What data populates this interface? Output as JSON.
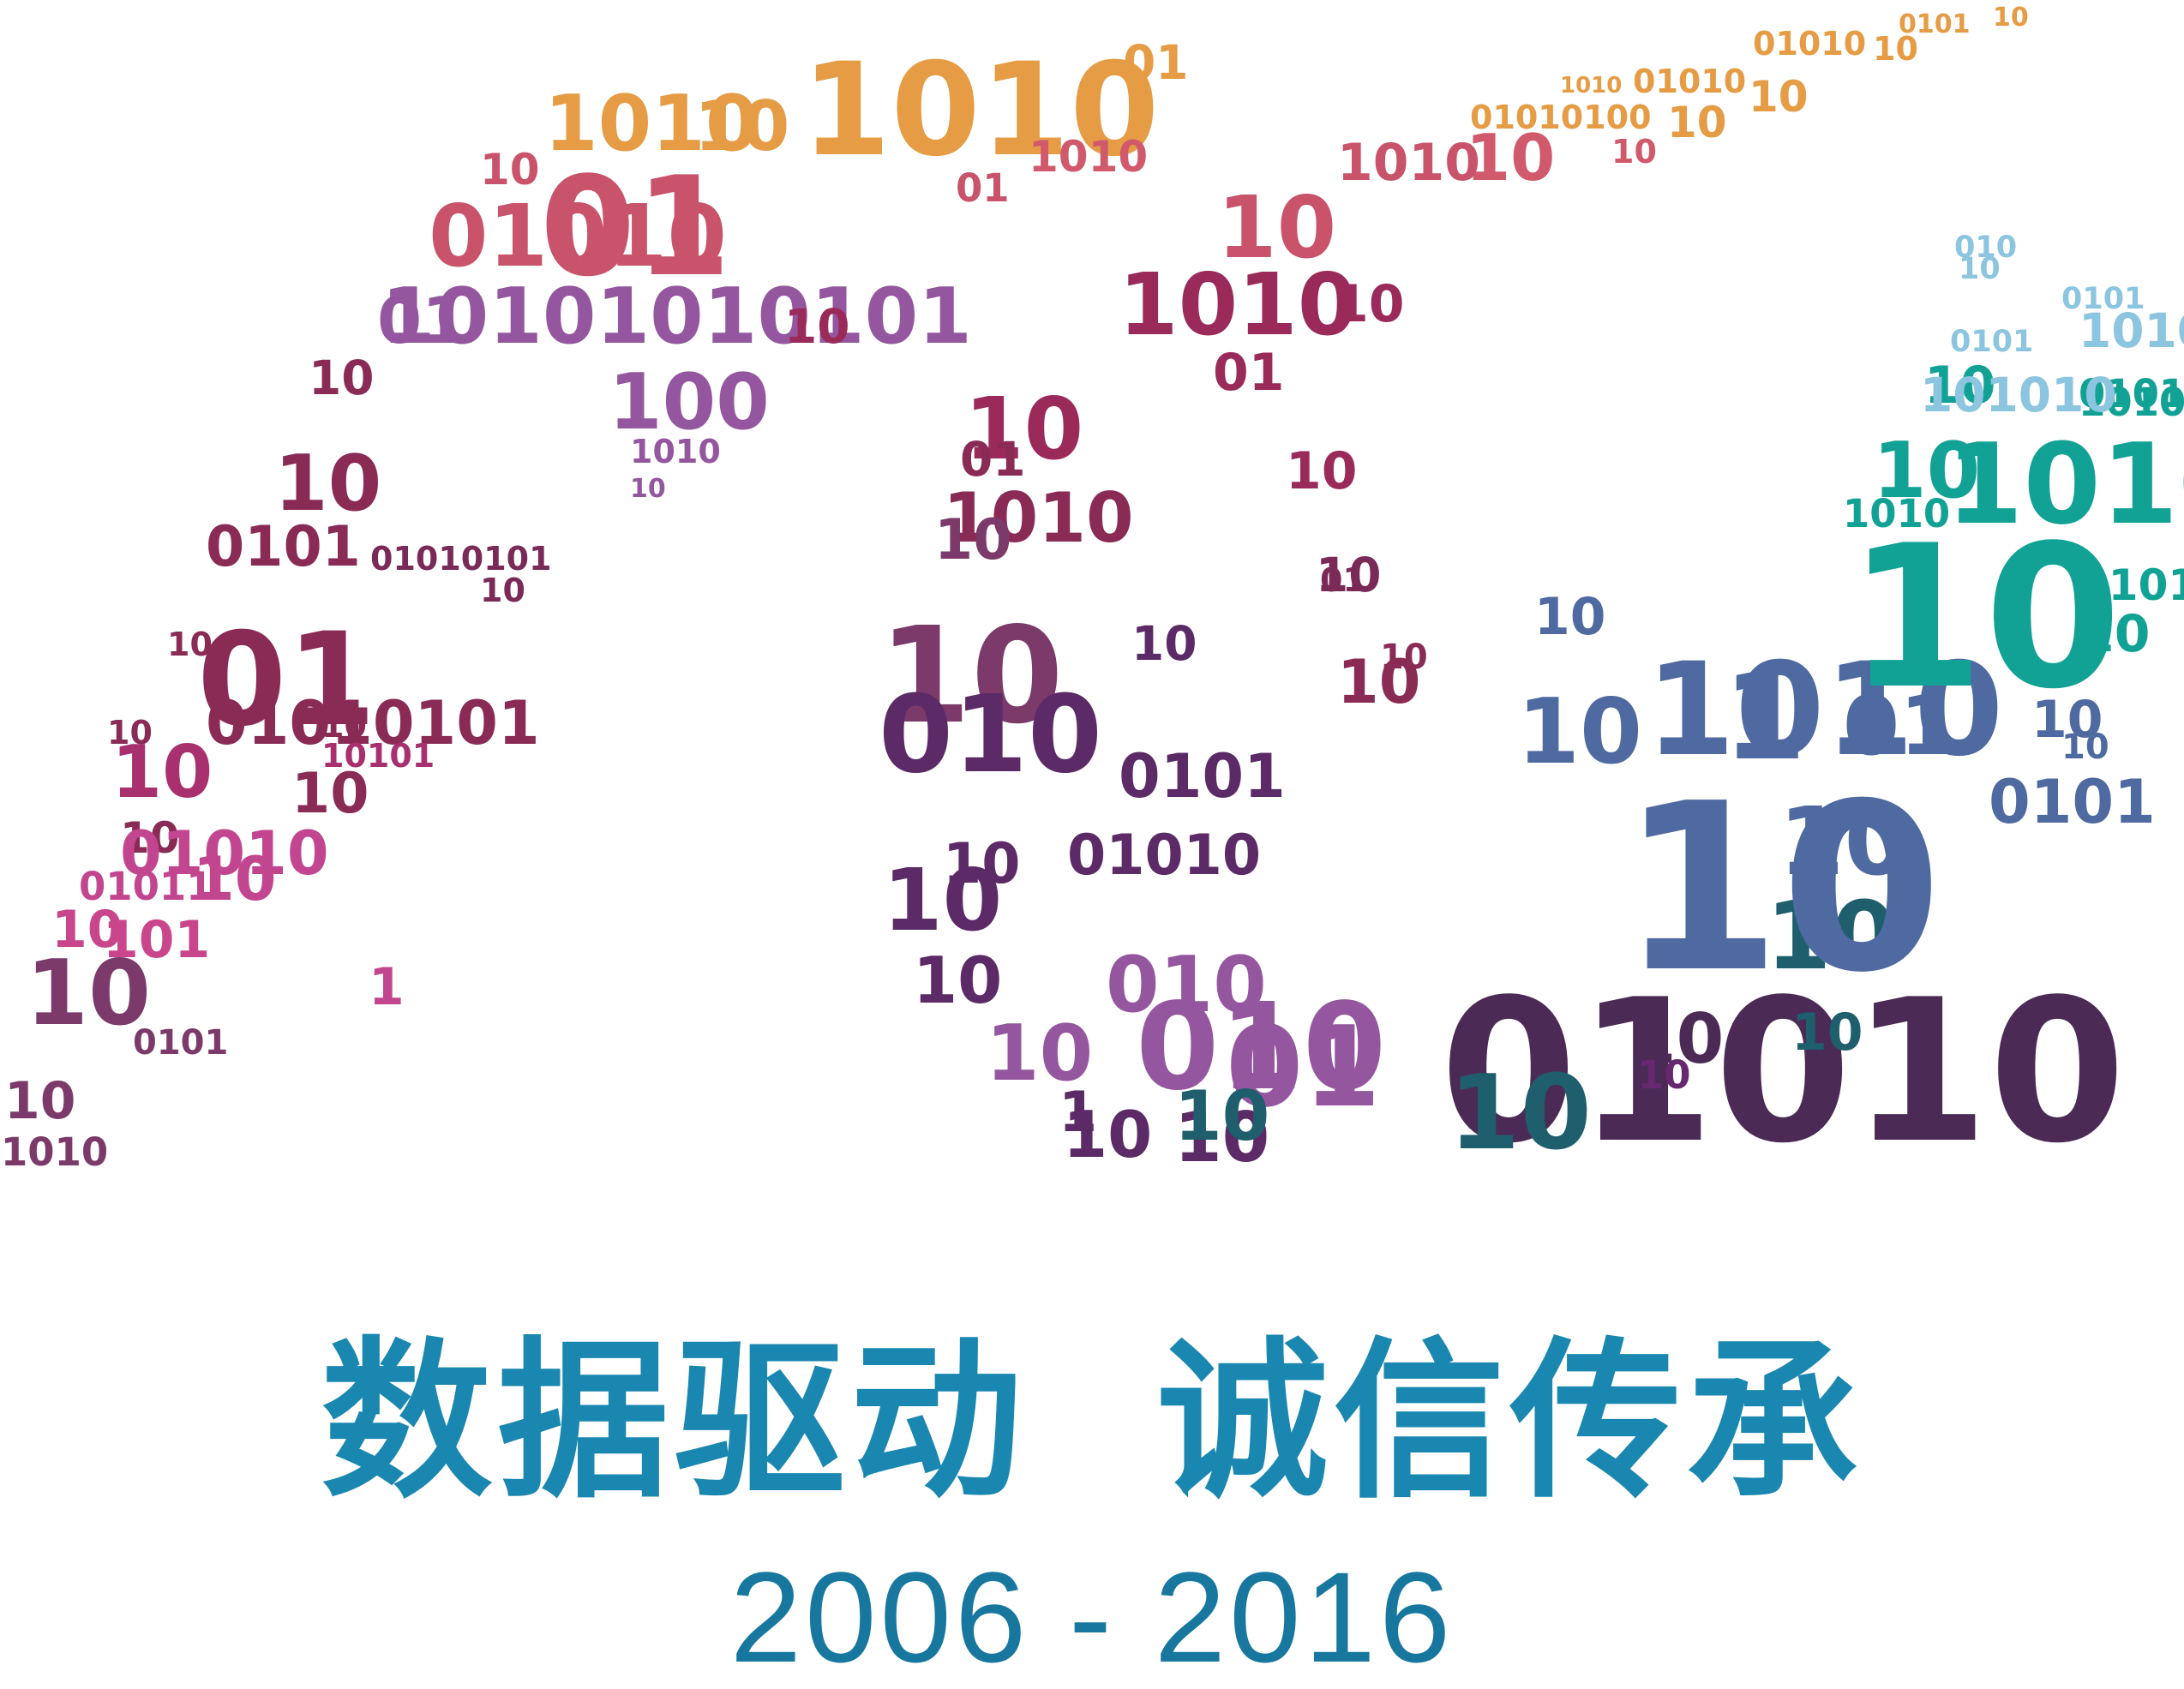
{
  "logo": {
    "tokens": [
      [
        "0101",
        "#e59c45"
      ],
      [
        "10",
        "#e59c45"
      ],
      [
        "01010",
        "#e59c45"
      ],
      [
        "10",
        "#e59c45"
      ],
      [
        "1010",
        "#e59c45"
      ],
      [
        "01010",
        "#e59c45"
      ],
      [
        "10",
        "#e59c45"
      ],
      [
        "01010100",
        "#e59c45"
      ],
      [
        "10",
        "#e59c45"
      ],
      [
        "01",
        "#e59c45"
      ],
      [
        "1010",
        "#e59c45"
      ],
      [
        "10",
        "#e59c45"
      ],
      [
        "1010",
        "#e59c45"
      ],
      [
        "1010",
        "#d05a6c"
      ],
      [
        "10",
        "#d05a6c"
      ],
      [
        "10",
        "#d05a6c"
      ],
      [
        "1010",
        "#c9536a"
      ],
      [
        "10",
        "#c9536a"
      ],
      [
        "01",
        "#c9536a"
      ],
      [
        "01010",
        "#c9536a"
      ],
      [
        "01",
        "#c9536a"
      ],
      [
        "10",
        "#c9536a"
      ],
      [
        "1010",
        "#9a2a5a"
      ],
      [
        "10",
        "#9a2a5a"
      ],
      [
        "10101010101",
        "#94579f"
      ],
      [
        "01",
        "#94579f"
      ],
      [
        "10",
        "#9a2a5a"
      ],
      [
        "10",
        "#9a2a5a"
      ],
      [
        "01",
        "#9a2a5a"
      ],
      [
        "10",
        "#9a2a5a"
      ],
      [
        "100",
        "#94579f"
      ],
      [
        "1010",
        "#94579f"
      ],
      [
        "10",
        "#94579f"
      ],
      [
        "01",
        "#8a2b56"
      ],
      [
        "10",
        "#8a2b56"
      ],
      [
        "10",
        "#8a2b56"
      ],
      [
        "1010",
        "#8a2b56"
      ],
      [
        "0101",
        "#8a2b56"
      ],
      [
        "01010101",
        "#7a2a57"
      ],
      [
        "10",
        "#7a2a57"
      ],
      [
        "10",
        "#7a2a57"
      ],
      [
        "01",
        "#7a2a57"
      ],
      [
        "10",
        "#8a2b56"
      ],
      [
        "10",
        "#8a2b56"
      ],
      [
        "10",
        "#8a2b56"
      ],
      [
        "01",
        "#8a2b56"
      ],
      [
        "01010101",
        "#8a2b56"
      ],
      [
        "10",
        "#8a2b56"
      ],
      [
        "10",
        "#8a2b56"
      ],
      [
        "10",
        "#8a2b56"
      ],
      [
        "10",
        "#8a2b56"
      ],
      [
        "10101",
        "#a8306e"
      ],
      [
        "10",
        "#a8306e"
      ],
      [
        "01010",
        "#c2468f"
      ],
      [
        "01011",
        "#c2468f"
      ],
      [
        "10",
        "#c2468f"
      ],
      [
        "1",
        "#c2468f"
      ],
      [
        "101",
        "#c9458c"
      ],
      [
        "10",
        "#c9458c"
      ],
      [
        "10",
        "#7b3a6a"
      ],
      [
        "0101",
        "#7b3a6a"
      ],
      [
        "10",
        "#7b3a6a"
      ],
      [
        "1010",
        "#7b3a6a"
      ],
      [
        "10",
        "#7b3a6a"
      ],
      [
        "10",
        "#7b3a6a"
      ],
      [
        "10",
        "#5c2a67"
      ],
      [
        "0101",
        "#5c2a67"
      ],
      [
        "01010",
        "#5c2a67"
      ],
      [
        "10",
        "#5c2a67"
      ],
      [
        "010",
        "#5c2a67"
      ],
      [
        "10",
        "#5c2a67"
      ],
      [
        "10",
        "#5c2a67"
      ],
      [
        "10",
        "#5c2a67"
      ],
      [
        "10",
        "#5c2a67"
      ],
      [
        "1",
        "#5c2a67"
      ],
      [
        "010",
        "#94579f"
      ],
      [
        "10",
        "#94579f"
      ],
      [
        "010",
        "#94579f"
      ],
      [
        "01",
        "#94579f"
      ],
      [
        "01010",
        "#4b2a55"
      ],
      [
        "10",
        "#4b2a55"
      ],
      [
        "10",
        "#66296f"
      ],
      [
        "10",
        "#1e5e6d"
      ],
      [
        "10",
        "#1e5e6d"
      ],
      [
        "10",
        "#1e5e6d"
      ],
      [
        "10",
        "#1e5e6d"
      ],
      [
        "10",
        "#4f6aa0"
      ],
      [
        "10",
        "#4f6aa0"
      ],
      [
        "0101",
        "#4f6aa0"
      ],
      [
        "10",
        "#4f6aa0"
      ],
      [
        "1010",
        "#4f6aa0"
      ],
      [
        "10",
        "#4f6aa0"
      ],
      [
        "1",
        "#4f6aa0"
      ],
      [
        "01",
        "#4f6aa0"
      ],
      [
        "10",
        "#4f6aa0"
      ],
      [
        "10",
        "#4f6aa0"
      ],
      [
        "10",
        "#11a295"
      ],
      [
        "0101",
        "#11a295"
      ],
      [
        "10",
        "#11a295"
      ],
      [
        "1010",
        "#11a295"
      ],
      [
        "10",
        "#11a295"
      ],
      [
        "1010",
        "#11a295"
      ],
      [
        "10",
        "#11a295"
      ],
      [
        "01010",
        "#11a295"
      ],
      [
        "1010",
        "#11a295"
      ],
      [
        "101010",
        "#8cc5e0"
      ],
      [
        "1010",
        "#8cc5e0"
      ],
      [
        "0101",
        "#8cc5e0"
      ],
      [
        "0101",
        "#8cc5e0"
      ],
      [
        "010",
        "#8cc5e0"
      ],
      [
        "10",
        "#8cc5e0"
      ]
    ]
  },
  "slogan": "数据驱动  诚信传承",
  "years": "2006 - 2016",
  "colors": {
    "slogan": "#1a87b0",
    "years": "#17779e"
  }
}
